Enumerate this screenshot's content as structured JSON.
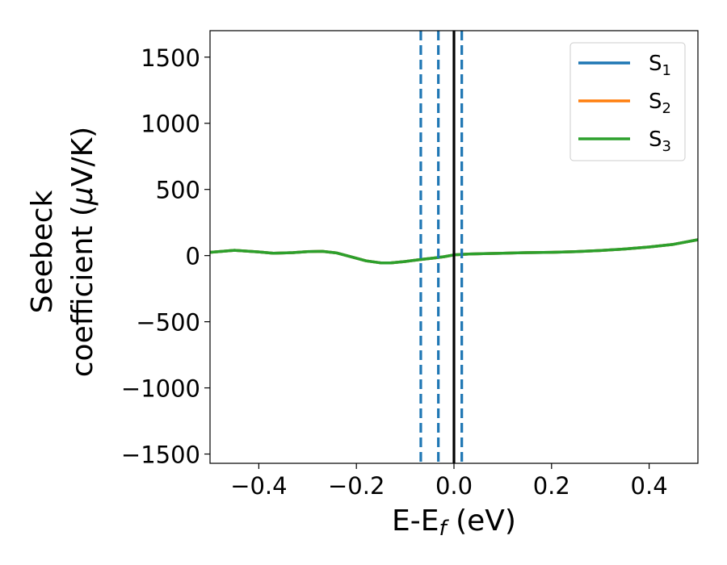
{
  "chart_data": {
    "type": "line",
    "xlabel": {
      "main": "E-E",
      "sub": "f",
      "unit": " (eV)"
    },
    "ylabel": {
      "line1": "Seebeck",
      "line2_pre": "coefficient  (",
      "line2_mu": "μ",
      "line2_post": "V/K)"
    },
    "xlim": [
      -0.5,
      0.5
    ],
    "ylim": [
      -1570,
      1700
    ],
    "xticks": [
      -0.4,
      -0.2,
      0.0,
      0.2,
      0.4
    ],
    "xtick_labels": [
      "−0.4",
      "−0.2",
      "0.0",
      "0.2",
      "0.4"
    ],
    "yticks": [
      -1500,
      -1000,
      -500,
      0,
      500,
      1000,
      1500
    ],
    "ytick_labels": [
      "−1500",
      "−1000",
      "−500",
      "0",
      "500",
      "1000",
      "1500"
    ],
    "grid": false,
    "legend_position": "top-right",
    "series": [
      {
        "name": "S",
        "sub": "1",
        "color": "#1f77b4",
        "x": [
          -0.5,
          -0.45,
          -0.4,
          -0.37,
          -0.33,
          -0.3,
          -0.27,
          -0.24,
          -0.21,
          -0.18,
          -0.15,
          -0.13,
          -0.1,
          -0.07,
          -0.04,
          -0.02,
          0.0,
          0.03,
          0.06,
          0.1,
          0.15,
          0.2,
          0.25,
          0.3,
          0.35,
          0.4,
          0.45,
          0.5
        ],
        "y": [
          25,
          40,
          28,
          18,
          22,
          30,
          32,
          20,
          -10,
          -40,
          -55,
          -55,
          -45,
          -30,
          -18,
          -8,
          5,
          12,
          15,
          18,
          22,
          25,
          30,
          38,
          50,
          65,
          85,
          120
        ]
      },
      {
        "name": "S",
        "sub": "2",
        "color": "#ff7f0e",
        "x": [
          -0.5,
          -0.45,
          -0.4,
          -0.37,
          -0.33,
          -0.3,
          -0.27,
          -0.24,
          -0.21,
          -0.18,
          -0.15,
          -0.13,
          -0.1,
          -0.07,
          -0.04,
          -0.02,
          0.0,
          0.03,
          0.06,
          0.1,
          0.15,
          0.2,
          0.25,
          0.3,
          0.35,
          0.4,
          0.45,
          0.5
        ],
        "y": [
          25,
          40,
          28,
          18,
          22,
          30,
          32,
          20,
          -10,
          -40,
          -55,
          -55,
          -45,
          -30,
          -18,
          -8,
          5,
          12,
          15,
          18,
          22,
          25,
          30,
          38,
          50,
          65,
          85,
          120
        ]
      },
      {
        "name": "S",
        "sub": "3",
        "color": "#2ca02c",
        "x": [
          -0.5,
          -0.45,
          -0.4,
          -0.37,
          -0.33,
          -0.3,
          -0.27,
          -0.24,
          -0.21,
          -0.18,
          -0.15,
          -0.13,
          -0.1,
          -0.07,
          -0.04,
          -0.02,
          0.0,
          0.03,
          0.06,
          0.1,
          0.15,
          0.2,
          0.25,
          0.3,
          0.35,
          0.4,
          0.45,
          0.5
        ],
        "y": [
          25,
          40,
          28,
          18,
          22,
          30,
          32,
          20,
          -10,
          -40,
          -55,
          -55,
          -45,
          -30,
          -18,
          -8,
          5,
          12,
          15,
          18,
          22,
          25,
          30,
          38,
          50,
          65,
          85,
          120
        ]
      }
    ],
    "vlines": [
      {
        "x": -0.068,
        "style": "dashed",
        "color": "#1f77b4"
      },
      {
        "x": -0.032,
        "style": "dashed",
        "color": "#1f77b4"
      },
      {
        "x": 0.0,
        "style": "solid",
        "color": "#000000"
      },
      {
        "x": 0.016,
        "style": "dashed",
        "color": "#1f77b4"
      }
    ]
  }
}
